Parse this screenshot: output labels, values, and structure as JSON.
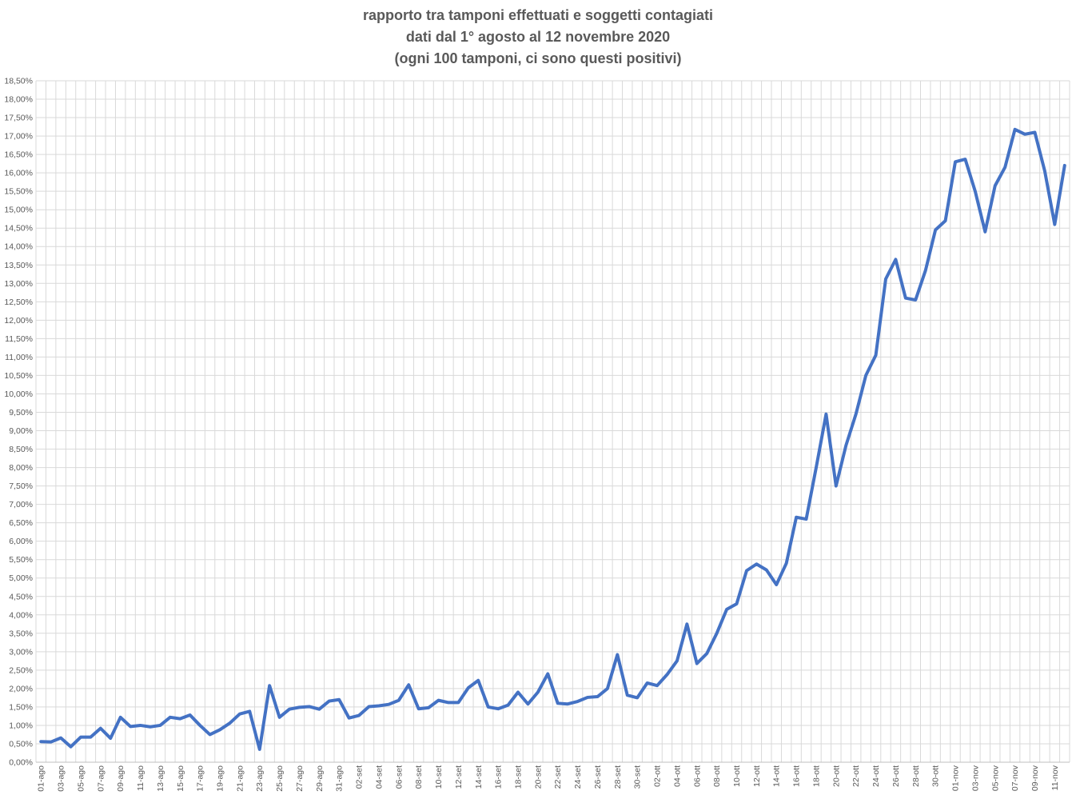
{
  "chart_data": {
    "type": "line",
    "title_lines": [
      "rapporto tra tamponi effettuati e soggetti contagiati",
      "dati dal 1° agosto al 12 novembre 2020",
      "(ogni 100 tamponi, ci sono questi positivi)"
    ],
    "ylim": [
      0,
      18.5
    ],
    "ystep": 0.5,
    "y_tick_labels": [
      "0,00%",
      "0,50%",
      "1,00%",
      "1,50%",
      "2,00%",
      "2,50%",
      "3,00%",
      "3,50%",
      "4,00%",
      "4,50%",
      "5,00%",
      "5,50%",
      "6,00%",
      "6,50%",
      "7,00%",
      "7,50%",
      "8,00%",
      "8,50%",
      "9,00%",
      "9,50%",
      "10,00%",
      "10,50%",
      "11,00%",
      "11,50%",
      "12,00%",
      "12,50%",
      "13,00%",
      "13,50%",
      "14,00%",
      "14,50%",
      "15,00%",
      "15,50%",
      "16,00%",
      "16,50%",
      "17,00%",
      "17,50%",
      "18,00%",
      "18,50%"
    ],
    "x_tick_labels": [
      "01-ago",
      "03-ago",
      "05-ago",
      "07-ago",
      "09-ago",
      "11-ago",
      "13-ago",
      "15-ago",
      "17-ago",
      "19-ago",
      "21-ago",
      "23-ago",
      "25-ago",
      "27-ago",
      "29-ago",
      "31-ago",
      "02-set",
      "04-set",
      "06-set",
      "08-set",
      "10-set",
      "12-set",
      "14-set",
      "16-set",
      "18-set",
      "20-set",
      "22-set",
      "24-set",
      "26-set",
      "28-set",
      "30-set",
      "02-ott",
      "04-ott",
      "06-ott",
      "08-ott",
      "10-ott",
      "12-ott",
      "14-ott",
      "16-ott",
      "18-ott",
      "20-ott",
      "22-ott",
      "24-ott",
      "26-ott",
      "28-ott",
      "30-ott",
      "01-nov",
      "03-nov",
      "05-nov",
      "07-nov",
      "09-nov",
      "11-nov"
    ],
    "x_tick_index": [
      0,
      2,
      4,
      6,
      8,
      10,
      12,
      14,
      16,
      18,
      20,
      22,
      24,
      26,
      28,
      30,
      32,
      34,
      36,
      38,
      40,
      42,
      44,
      46,
      48,
      50,
      52,
      54,
      56,
      58,
      60,
      62,
      64,
      66,
      68,
      70,
      72,
      74,
      76,
      78,
      80,
      82,
      84,
      86,
      88,
      90,
      92,
      94,
      96,
      98,
      100,
      102
    ],
    "grid": true,
    "legend": "none",
    "series": [
      {
        "color": "#4472C4",
        "values": [
          0.56,
          0.55,
          0.66,
          0.42,
          0.68,
          0.68,
          0.92,
          0.65,
          1.22,
          0.97,
          1.0,
          0.96,
          1.0,
          1.22,
          1.18,
          1.28,
          1.0,
          0.75,
          0.88,
          1.06,
          1.31,
          1.38,
          0.35,
          2.08,
          1.22,
          1.44,
          1.49,
          1.51,
          1.44,
          1.66,
          1.7,
          1.2,
          1.27,
          1.51,
          1.53,
          1.57,
          1.68,
          2.1,
          1.45,
          1.48,
          1.68,
          1.62,
          1.62,
          2.02,
          2.22,
          1.5,
          1.45,
          1.55,
          1.9,
          1.58,
          1.9,
          2.4,
          1.6,
          1.58,
          1.65,
          1.76,
          1.78,
          2.0,
          2.92,
          1.82,
          1.75,
          2.15,
          2.08,
          2.38,
          2.75,
          3.75,
          2.68,
          2.95,
          3.5,
          4.15,
          4.3,
          5.2,
          5.38,
          5.22,
          4.82,
          5.4,
          6.65,
          6.6,
          8.0,
          9.45,
          7.5,
          8.6,
          9.45,
          10.5,
          11.05,
          13.12,
          13.65,
          12.6,
          12.55,
          13.35,
          14.45,
          14.7,
          16.3,
          16.37,
          15.5,
          14.4,
          15.65,
          16.15,
          17.18,
          17.05,
          17.1,
          16.05,
          14.6,
          16.2
        ]
      }
    ]
  }
}
